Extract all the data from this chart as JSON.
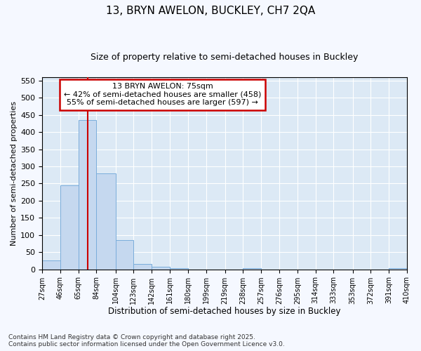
{
  "title": "13, BRYN AWELON, BUCKLEY, CH7 2QA",
  "subtitle": "Size of property relative to semi-detached houses in Buckley",
  "xlabel": "Distribution of semi-detached houses by size in Buckley",
  "ylabel": "Number of semi-detached properties",
  "annotation_title": "13 BRYN AWELON: 75sqm",
  "annotation_line1": "← 42% of semi-detached houses are smaller (458)",
  "annotation_line2": "55% of semi-detached houses are larger (597) →",
  "footer_line1": "Contains HM Land Registry data © Crown copyright and database right 2025.",
  "footer_line2": "Contains public sector information licensed under the Open Government Licence v3.0.",
  "bar_color": "#c5d8ef",
  "bar_edge_color": "#7aaddb",
  "bg_color": "#dce9f5",
  "fig_bg_color": "#f5f8ff",
  "grid_color": "#ffffff",
  "annotation_box_facecolor": "#ffffff",
  "annotation_box_edgecolor": "#cc0000",
  "vline_color": "#cc0000",
  "subject_size": 75,
  "bin_edges": [
    27,
    46,
    65,
    84,
    104,
    123,
    142,
    161,
    180,
    199,
    219,
    238,
    257,
    276,
    295,
    314,
    333,
    353,
    372,
    391,
    410
  ],
  "bar_heights": [
    25,
    245,
    435,
    280,
    85,
    15,
    8,
    4,
    0,
    0,
    0,
    4,
    0,
    0,
    0,
    0,
    0,
    0,
    0,
    4
  ],
  "ylim": [
    0,
    560
  ],
  "yticks": [
    0,
    50,
    100,
    150,
    200,
    250,
    300,
    350,
    400,
    450,
    500,
    550
  ]
}
